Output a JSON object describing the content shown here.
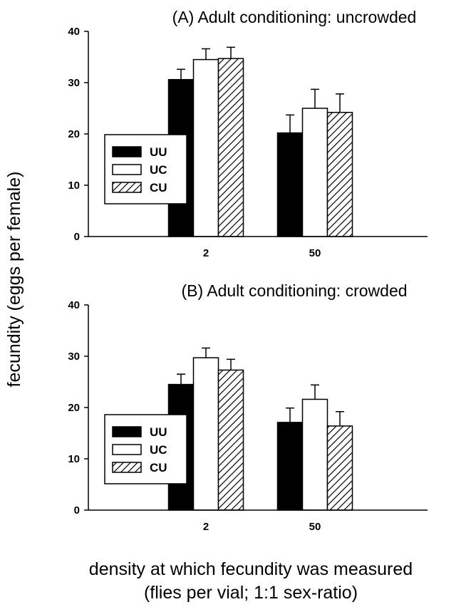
{
  "ylabel": "fecundity (eggs per female)",
  "xlabel_line1": "density at which fecundity was measured",
  "xlabel_line2": "(flies per vial; 1:1 sex-ratio)",
  "colors": {
    "UU": "#000000",
    "UC": "#ffffff",
    "CU": "hatched",
    "ink": "#000000"
  },
  "chart_data": [
    {
      "type": "bar",
      "title": "(A) Adult conditioning: uncrowded",
      "categories": [
        "2",
        "50"
      ],
      "ylim": [
        0,
        40
      ],
      "yticks": [
        "0",
        "10",
        "20",
        "30",
        "40"
      ],
      "legend_position": "left",
      "series": [
        {
          "name": "UU",
          "values": [
            30.6,
            20.2
          ],
          "errors": [
            2.0,
            3.5
          ]
        },
        {
          "name": "UC",
          "values": [
            34.5,
            25.0
          ],
          "errors": [
            2.1,
            3.7
          ]
        },
        {
          "name": "CU",
          "values": [
            34.7,
            24.2
          ],
          "errors": [
            2.2,
            3.6
          ]
        }
      ]
    },
    {
      "type": "bar",
      "title": "(B) Adult conditioning: crowded",
      "categories": [
        "2",
        "50"
      ],
      "ylim": [
        0,
        40
      ],
      "yticks": [
        "0",
        "10",
        "20",
        "30",
        "40"
      ],
      "legend_position": "left",
      "series": [
        {
          "name": "UU",
          "values": [
            24.5,
            17.1
          ],
          "errors": [
            2.0,
            2.8
          ]
        },
        {
          "name": "UC",
          "values": [
            29.7,
            21.6
          ],
          "errors": [
            1.9,
            2.8
          ]
        },
        {
          "name": "CU",
          "values": [
            27.3,
            16.4
          ],
          "errors": [
            2.1,
            2.8
          ]
        }
      ]
    }
  ]
}
